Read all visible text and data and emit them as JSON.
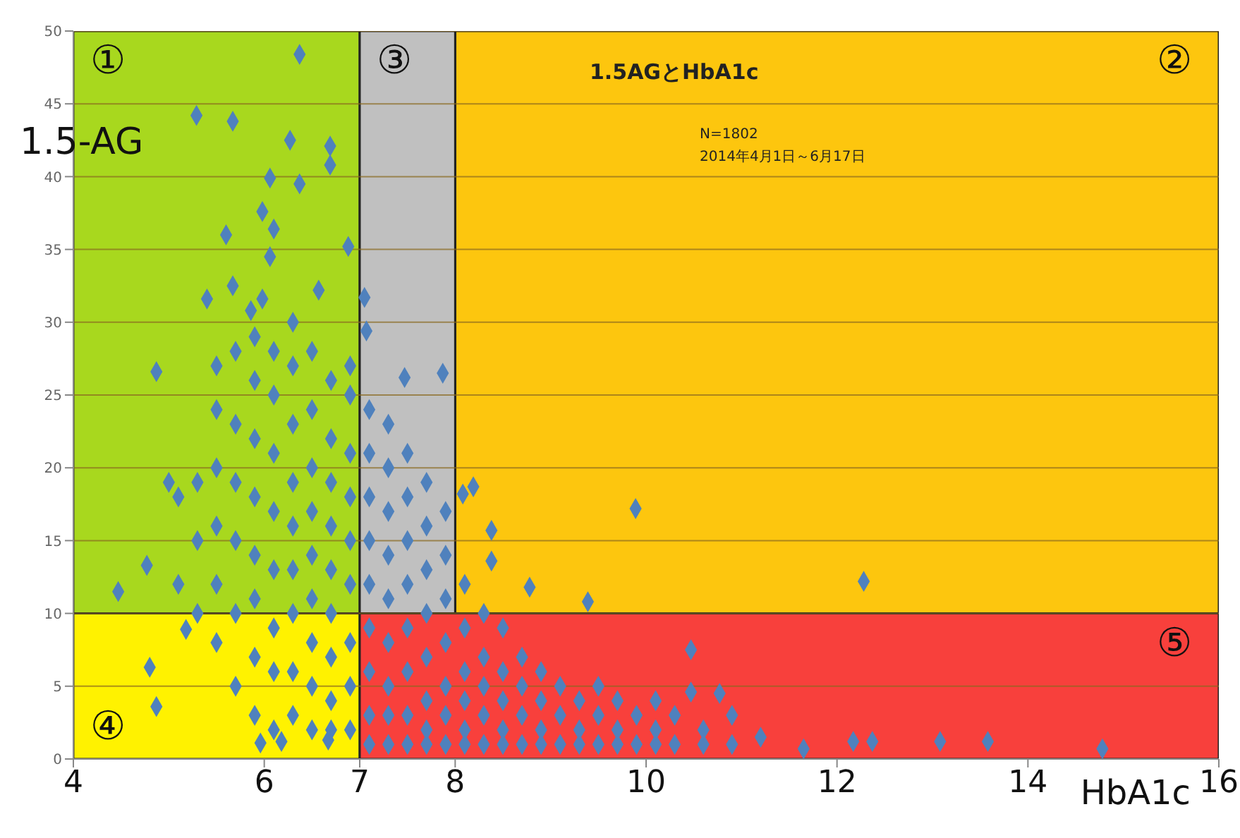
{
  "chart_data": {
    "type": "scatter",
    "title": "1.5AGとHbA1c",
    "annotations": [
      "N=1802",
      "2014年4月1日～6月17日"
    ],
    "xlabel": "HbA1c",
    "ylabel": "1.5-AG",
    "xlim": [
      4,
      16
    ],
    "xticks": [
      4,
      6,
      7,
      8,
      10,
      12,
      14,
      16
    ],
    "ylim": [
      0,
      50
    ],
    "yticks": [
      0,
      5,
      10,
      15,
      20,
      25,
      30,
      35,
      40,
      45,
      50
    ],
    "grid": "y",
    "marker": "diamond",
    "bands": [
      {
        "axis": "x",
        "from": 4,
        "to": 7,
        "label": "①",
        "color": "#a8d81e"
      },
      {
        "axis": "x",
        "from": 8,
        "to": 16,
        "label": "②",
        "color": "#fdc60e"
      },
      {
        "axis": "x",
        "from": 7,
        "to": 8,
        "label": "③",
        "color": "#c0c0c0"
      },
      {
        "axis": "x",
        "from": 4,
        "to": 7,
        "label": "④",
        "color": "#fff200"
      },
      {
        "axis": "x",
        "from": 7,
        "to": 16,
        "label": "⑤",
        "color": "#f8403c"
      }
    ],
    "series": [
      {
        "color": "#4f81bd",
        "x": [
          6.37,
          5.29,
          5.67,
          6.27,
          6.69,
          6.69,
          6.06,
          6.37,
          5.98,
          6.1,
          5.6,
          6.06,
          6.88,
          5.67,
          5.4,
          5.98,
          6.57,
          7.05,
          7.07,
          4.87,
          7.47,
          7.87,
          5.86,
          4.47,
          4.77,
          4.87,
          4.8,
          5.96,
          6.18,
          6.67,
          9.89,
          12.28,
          14.78,
          13.58,
          13.08,
          12.37,
          12.17,
          11.65,
          10.47,
          10.77,
          10.47,
          8.38,
          8.38,
          8.78,
          9.39,
          8.19,
          8.08,
          5.18,
          5.0,
          5.1,
          5.1,
          5.3,
          5.3,
          5.3,
          5.5,
          5.5,
          5.5,
          5.5,
          5.5,
          5.5,
          5.7,
          5.7,
          5.7,
          5.7,
          5.7,
          5.7,
          5.9,
          5.9,
          5.9,
          5.9,
          5.9,
          5.9,
          5.9,
          5.9,
          6.1,
          6.1,
          6.1,
          6.1,
          6.1,
          6.1,
          6.1,
          6.1,
          6.3,
          6.3,
          6.3,
          6.3,
          6.3,
          6.3,
          6.3,
          6.3,
          6.3,
          6.5,
          6.5,
          6.5,
          6.5,
          6.5,
          6.5,
          6.5,
          6.5,
          6.5,
          6.7,
          6.7,
          6.7,
          6.7,
          6.7,
          6.7,
          6.7,
          6.7,
          6.7,
          6.9,
          6.9,
          6.9,
          6.9,
          6.9,
          6.9,
          6.9,
          6.9,
          6.9,
          7.1,
          7.1,
          7.1,
          7.1,
          7.1,
          7.1,
          7.1,
          7.1,
          7.1,
          7.3,
          7.3,
          7.3,
          7.3,
          7.3,
          7.3,
          7.3,
          7.3,
          7.3,
          7.5,
          7.5,
          7.5,
          7.5,
          7.5,
          7.5,
          7.5,
          7.5,
          7.7,
          7.7,
          7.7,
          7.7,
          7.7,
          7.7,
          7.7,
          7.7,
          7.9,
          7.9,
          7.9,
          7.9,
          7.9,
          7.9,
          7.9,
          8.1,
          8.1,
          8.1,
          8.1,
          8.1,
          8.1,
          8.3,
          8.3,
          8.3,
          8.3,
          8.3,
          8.5,
          8.5,
          8.5,
          8.5,
          8.5,
          8.7,
          8.7,
          8.7,
          8.7,
          8.9,
          8.9,
          8.9,
          8.9,
          9.1,
          9.1,
          9.1,
          9.3,
          9.3,
          9.3,
          9.5,
          9.5,
          9.5,
          9.7,
          9.7,
          9.7,
          9.9,
          9.9,
          10.1,
          10.1,
          10.1,
          10.3,
          10.3,
          10.6,
          10.6,
          10.9,
          10.9,
          11.2
        ],
        "values": [
          48.4,
          44.2,
          43.8,
          42.5,
          42.1,
          40.8,
          39.9,
          39.5,
          37.6,
          36.4,
          36,
          34.5,
          35.2,
          32.5,
          31.6,
          31.6,
          32.2,
          31.7,
          29.4,
          26.6,
          26.2,
          26.5,
          30.8,
          11.5,
          13.3,
          3.6,
          6.3,
          1.1,
          1.2,
          1.3,
          17.2,
          12.2,
          0.7,
          1.2,
          1.2,
          1.2,
          1.2,
          0.7,
          7.5,
          4.5,
          4.6,
          15.7,
          13.6,
          11.8,
          10.8,
          18.7,
          18.2,
          8.9,
          19,
          12,
          18,
          10,
          15,
          19,
          8,
          12,
          16,
          20,
          24,
          27,
          5,
          10,
          15,
          19,
          23,
          28,
          3,
          7,
          11,
          14,
          18,
          22,
          26,
          29,
          2,
          6,
          9,
          13,
          17,
          21,
          25,
          28,
          3,
          6,
          10,
          13,
          16,
          19,
          23,
          27,
          30,
          2,
          5,
          8,
          11,
          14,
          17,
          20,
          24,
          28,
          2,
          4,
          7,
          10,
          13,
          16,
          19,
          22,
          26,
          2,
          5,
          8,
          12,
          15,
          18,
          21,
          25,
          27,
          1,
          3,
          6,
          9,
          12,
          15,
          18,
          21,
          24,
          1,
          3,
          5,
          8,
          11,
          14,
          17,
          20,
          23,
          1,
          3,
          6,
          9,
          12,
          15,
          18,
          21,
          1,
          2,
          4,
          7,
          10,
          13,
          16,
          19,
          1,
          3,
          5,
          8,
          11,
          14,
          17,
          1,
          2,
          4,
          6,
          9,
          12,
          1,
          3,
          5,
          7,
          10,
          1,
          2,
          4,
          6,
          9,
          1,
          3,
          5,
          7,
          1,
          2,
          4,
          6,
          1,
          3,
          5,
          1,
          2,
          4,
          1,
          3,
          5,
          1,
          2,
          4,
          1,
          3,
          1,
          2,
          4,
          1,
          3,
          1,
          2,
          1,
          3,
          1.5
        ]
      }
    ]
  }
}
